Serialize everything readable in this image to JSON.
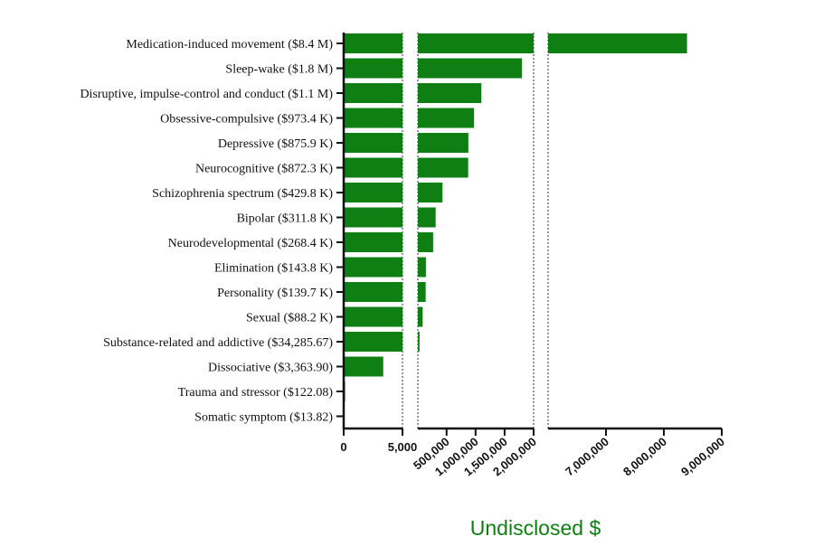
{
  "colors": {
    "bar": "#0f7f14",
    "axis": "#111111",
    "title": "#0f7f14"
  },
  "chart_data": {
    "type": "bar",
    "orientation": "horizontal",
    "xlabel": "Undisclosed $",
    "ylabel": "",
    "title": "",
    "axis_segments": [
      {
        "range": [
          0,
          5000
        ],
        "ticks": [
          0,
          5000
        ],
        "tick_labels": [
          "0",
          "5,000"
        ]
      },
      {
        "range": [
          5000,
          2000000
        ],
        "ticks": [
          500000,
          1000000,
          1500000,
          2000000
        ],
        "tick_labels": [
          "500,000",
          "1,000,000",
          "1,500,000",
          "2,000,000"
        ]
      },
      {
        "range": [
          6000000,
          9000000
        ],
        "ticks": [
          7000000,
          8000000,
          9000000
        ],
        "tick_labels": [
          "7,000,000",
          "8,000,000",
          "9,000,000"
        ]
      }
    ],
    "categories": [
      "Medication-induced movement ($8.4 M)",
      "Sleep-wake ($1.8 M)",
      "Disruptive, impulse-control and conduct ($1.1 M)",
      "Obsessive-compulsive ($973.4 K)",
      "Depressive ($875.9 K)",
      "Neurocognitive ($872.3 K)",
      "Schizophrenia spectrum ($429.8 K)",
      "Bipolar ($311.8 K)",
      "Neurodevelopmental ($268.4 K)",
      "Elimination ($143.8 K)",
      "Personality ($139.7 K)",
      "Sexual ($88.2 K)",
      "Substance-related and addictive ($34,285.67)",
      "Dissociative ($3,363.90)",
      "Trauma and stressor ($122.08)",
      "Somatic symptom  ($13.82)"
    ],
    "values": [
      8400000,
      1800000,
      1100000,
      973400,
      875900,
      872300,
      429800,
      311800,
      268400,
      143800,
      139700,
      88200,
      34285.67,
      3363.9,
      122.08,
      13.82
    ]
  }
}
